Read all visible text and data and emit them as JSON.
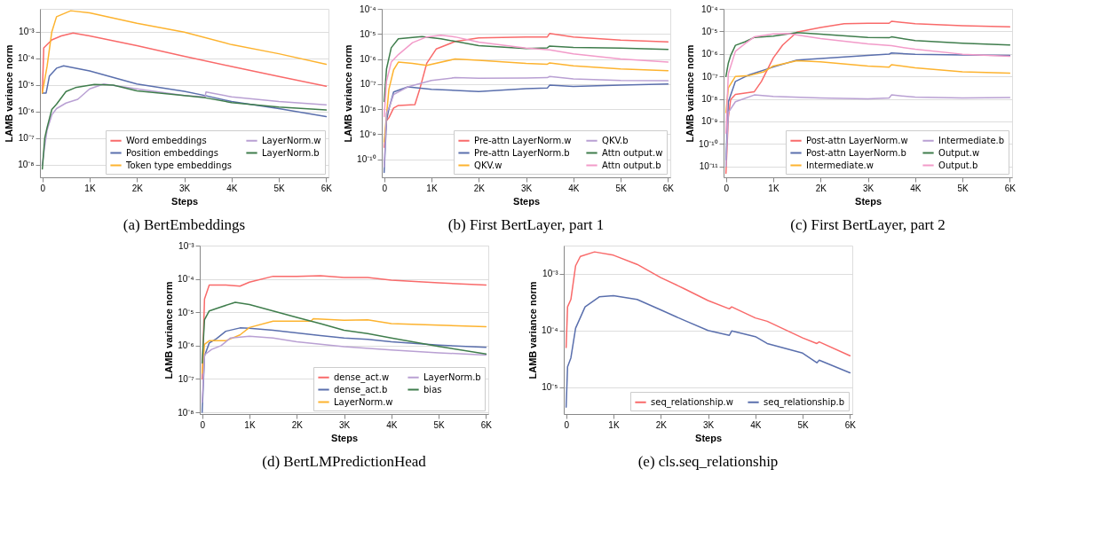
{
  "chart_data": [
    {
      "type": "line",
      "title": "(a) BertEmbeddings",
      "xlabel": "Steps",
      "ylabel": "LAMB variance norm",
      "log": "y",
      "grid": "y",
      "legend": "bottom right",
      "line_style": "solid",
      "xlim": [
        -50,
        6050
      ],
      "ylim": [
        3.4e-09,
        0.0073
      ],
      "xticks": [
        0,
        {
          "value": 1000,
          "label": "1K"
        },
        {
          "value": 2000,
          "label": "2K"
        },
        {
          "value": 3000,
          "label": "3K"
        },
        {
          "value": 4000,
          "label": "4K"
        },
        {
          "value": 5000,
          "label": "5K"
        },
        {
          "value": 6000,
          "label": "6K"
        }
      ],
      "yticks": [
        {
          "value": 1e-08,
          "label": "10⁻⁸"
        },
        {
          "value": 1e-07,
          "label": "10⁻⁷"
        },
        {
          "value": 1e-06,
          "label": "10⁻⁶"
        },
        {
          "value": 1e-05,
          "label": "10⁻⁵"
        },
        {
          "value": 0.0001,
          "label": "10⁻⁴"
        },
        {
          "value": 0.001,
          "label": "10⁻³"
        }
      ],
      "series": [
        {
          "name": "Word embeddings",
          "color": "#f96a6a",
          "x": [
            0,
            30,
            200,
            400,
            650,
            1000,
            2000,
            3000,
            4000,
            5000,
            6000
          ],
          "values": [
            5e-06,
            0.00025,
            0.0005,
            0.0007,
            0.0009,
            0.0007,
            0.0003,
            0.00012,
            5e-05,
            2.1e-05,
            9e-06
          ]
        },
        {
          "name": "Position embeddings",
          "color": "#5a6fad",
          "x": [
            0,
            80,
            150,
            300,
            450,
            1000,
            2000,
            3000,
            3450,
            4000,
            5000,
            6000
          ],
          "values": [
            5e-06,
            5e-06,
            2.2e-05,
            4.3e-05,
            5.3e-05,
            3.4e-05,
            1.1e-05,
            5.8e-06,
            4e-06,
            2.4e-06,
            1.3e-06,
            6.5e-07
          ]
        },
        {
          "name": "Token type embeddings",
          "color": "#fdb32f",
          "x": [
            0,
            100,
            200,
            300,
            600,
            1000,
            2000,
            3000,
            4000,
            5000,
            6000
          ],
          "values": [
            5e-06,
            5e-05,
            0.001,
            0.0037,
            0.0062,
            0.0052,
            0.0021,
            0.00098,
            0.00033,
            0.00015,
            6e-05
          ]
        },
        {
          "name": "LayerNorm.w",
          "color": "#b9a0d3",
          "x": [
            0,
            50,
            100,
            200,
            300,
            500,
            750,
            1000,
            1300,
            2000,
            3000,
            3440,
            3460,
            4000,
            5000,
            6000
          ],
          "values": [
            1e-08,
            5e-08,
            2e-07,
            7.5e-07,
            1.3e-06,
            2.1e-06,
            2.9e-06,
            7.2e-06,
            1.1e-05,
            7.2e-06,
            4e-06,
            3.6e-06,
            5.5e-06,
            3.6e-06,
            2.4e-06,
            1.8e-06
          ]
        },
        {
          "name": "LayerNorm.b",
          "color": "#3f7d4c",
          "x": [
            0,
            50,
            100,
            200,
            300,
            500,
            700,
            1100,
            1500,
            2000,
            3000,
            3450,
            4000,
            5000,
            6000
          ],
          "values": [
            7e-09,
            1e-07,
            2.5e-07,
            1.2e-06,
            1.9e-06,
            5.7e-06,
            8e-06,
            1.05e-05,
            1e-05,
            6e-06,
            4e-06,
            3.3e-06,
            2.2e-06,
            1.5e-06,
            1.15e-06
          ]
        }
      ]
    },
    {
      "type": "line",
      "title": "(b) First BertLayer, part 1",
      "xlabel": "Steps",
      "ylabel": "LAMB variance norm",
      "log": "y",
      "grid": "y",
      "legend": "bottom right",
      "line_style": "solid",
      "xlim": [
        -50,
        6050
      ],
      "ylim": [
        1.9e-11,
        0.0001
      ],
      "xticks": [
        0,
        {
          "value": 1000,
          "label": "1K"
        },
        {
          "value": 2000,
          "label": "2K"
        },
        {
          "value": 3000,
          "label": "3K"
        },
        {
          "value": 4000,
          "label": "4K"
        },
        {
          "value": 5000,
          "label": "5K"
        },
        {
          "value": 6000,
          "label": "6K"
        }
      ],
      "yticks": [
        {
          "value": 1e-10,
          "label": "10⁻¹⁰"
        },
        {
          "value": 1e-09,
          "label": "10⁻⁹"
        },
        {
          "value": 1e-08,
          "label": "10⁻⁸"
        },
        {
          "value": 1e-07,
          "label": "10⁻⁷"
        },
        {
          "value": 1e-06,
          "label": "10⁻⁶"
        },
        {
          "value": 1e-05,
          "label": "10⁻⁵"
        },
        {
          "value": 0.0001,
          "label": "10⁻⁴"
        }
      ],
      "series": [
        {
          "name": "Pre-attn LayerNorm.w",
          "color": "#f96a6a",
          "x": [
            0,
            50,
            100,
            200,
            300,
            650,
            750,
            900,
            1100,
            1500,
            2000,
            3000,
            3450,
            3500,
            4000,
            5000,
            6000
          ],
          "values": [
            3e-10,
            3.5e-09,
            4.5e-09,
            1.1e-08,
            1.4e-08,
            1.5e-08,
            6e-08,
            6.7e-07,
            2.5e-06,
            5e-06,
            7e-06,
            7.6e-06,
            7.6e-06,
            1.05e-05,
            7.6e-06,
            5.7e-06,
            4.8e-06
          ]
        },
        {
          "name": "Pre-attn LayerNorm.b",
          "color": "#5a6fad",
          "x": [
            0,
            50,
            100,
            200,
            500,
            1000,
            2000,
            3000,
            3450,
            3500,
            4000,
            5000,
            6000
          ],
          "values": [
            3e-11,
            3.5e-09,
            1e-08,
            4.8e-08,
            7.7e-08,
            6.2e-08,
            5e-08,
            6.5e-08,
            6.9e-08,
            9e-08,
            8e-08,
            9e-08,
            1e-07
          ]
        },
        {
          "name": "QKV.w",
          "color": "#fdb32f",
          "x": [
            0,
            100,
            200,
            300,
            600,
            900,
            1500,
            2000,
            3000,
            3450,
            3500,
            4000,
            5000,
            6000
          ],
          "values": [
            5e-10,
            6.1e-08,
            3.7e-07,
            7.5e-07,
            6.7e-07,
            5.6e-07,
            1e-06,
            8.9e-07,
            6.7e-07,
            6.2e-07,
            7e-07,
            5.3e-07,
            4e-07,
            3.4e-07
          ]
        },
        {
          "name": "QKV.b",
          "color": "#b9a0d3",
          "x": [
            0,
            50,
            100,
            200,
            500,
            1000,
            1500,
            2000,
            3000,
            3450,
            3500,
            4000,
            5000,
            6000
          ],
          "values": [
            5e-11,
            7e-09,
            1.1e-08,
            3.8e-08,
            7.7e-08,
            1.4e-07,
            1.8e-07,
            1.7e-07,
            1.75e-07,
            1.8e-07,
            2e-07,
            1.6e-07,
            1.4e-07,
            1.35e-07
          ]
        },
        {
          "name": "Attn output.w",
          "color": "#3f7d4c",
          "x": [
            0,
            50,
            150,
            300,
            500,
            800,
            1200,
            2000,
            3000,
            3450,
            3500,
            4000,
            5000,
            6000
          ],
          "values": [
            2e-08,
            4e-07,
            2.8e-06,
            6.4e-06,
            6.9e-06,
            7.8e-06,
            6.4e-06,
            3.4e-06,
            2.6e-06,
            2.8e-06,
            3.3e-06,
            2.9e-06,
            2.7e-06,
            2.4e-06
          ]
        },
        {
          "name": "Attn output.b",
          "color": "#f29bc9",
          "x": [
            0,
            50,
            150,
            300,
            600,
            900,
            1200,
            1500,
            2000,
            3000,
            3500,
            4000,
            5000,
            6000
          ],
          "values": [
            5e-09,
            1.3e-07,
            7.5e-07,
            1.5e-06,
            4.5e-06,
            7.6e-06,
            8.8e-06,
            7.6e-06,
            4.7e-06,
            2.7e-06,
            2.3e-06,
            1.6e-06,
            1e-06,
            7.5e-07
          ]
        }
      ]
    },
    {
      "type": "line",
      "title": "(c) First BertLayer, part 2",
      "xlabel": "Steps",
      "ylabel": "LAMB variance norm",
      "log": "y",
      "grid": "y",
      "legend": "bottom right",
      "line_style": "solid",
      "xlim": [
        -50,
        6050
      ],
      "ylim": [
        3.3e-12,
        0.0001
      ],
      "xticks": [
        0,
        {
          "value": 1000,
          "label": "1K"
        },
        {
          "value": 2000,
          "label": "2K"
        },
        {
          "value": 3000,
          "label": "3K"
        },
        {
          "value": 4000,
          "label": "4K"
        },
        {
          "value": 5000,
          "label": "5K"
        },
        {
          "value": 6000,
          "label": "6K"
        }
      ],
      "yticks": [
        {
          "value": 1e-11,
          "label": "10⁻¹¹"
        },
        {
          "value": 1e-10,
          "label": "10⁻¹⁰"
        },
        {
          "value": 1e-09,
          "label": "10⁻⁹"
        },
        {
          "value": 1e-08,
          "label": "10⁻⁸"
        },
        {
          "value": 1e-07,
          "label": "10⁻⁷"
        },
        {
          "value": 1e-06,
          "label": "10⁻⁶"
        },
        {
          "value": 1e-05,
          "label": "10⁻⁵"
        },
        {
          "value": 0.0001,
          "label": "10⁻⁴"
        }
      ],
      "series": [
        {
          "name": "Post-attn LayerNorm.w",
          "color": "#f96a6a",
          "x": [
            0,
            50,
            100,
            200,
            600,
            750,
            1000,
            1200,
            1500,
            2000,
            2500,
            3000,
            3450,
            3500,
            4000,
            5000,
            6000
          ],
          "values": [
            5e-12,
            1.5e-09,
            9.5e-09,
            1.6e-08,
            2.1e-08,
            6e-08,
            6.6e-07,
            2.5e-06,
            9.2e-06,
            1.5e-05,
            2.2e-05,
            2.3e-05,
            2.3e-05,
            2.8e-05,
            2.2e-05,
            1.8e-05,
            1.6e-05
          ]
        },
        {
          "name": "Post-attn LayerNorm.b",
          "color": "#5a6fad",
          "x": [
            0,
            50,
            200,
            500,
            1000,
            1500,
            2000,
            3000,
            3450,
            3500,
            4000,
            5000,
            6000
          ],
          "values": [
            2e-11,
            7.3e-09,
            6e-08,
            1.2e-07,
            2.6e-07,
            5.3e-07,
            6.2e-07,
            8.6e-07,
            9.8e-07,
            1.1e-06,
            9.5e-07,
            9e-07,
            8.6e-07
          ]
        },
        {
          "name": "Intermediate.w",
          "color": "#fdb32f",
          "x": [
            0,
            50,
            200,
            500,
            800,
            1000,
            1500,
            2000,
            3000,
            3450,
            3500,
            4000,
            5000,
            6000
          ],
          "values": [
            2.5e-09,
            3.1e-08,
            1e-07,
            1.1e-07,
            1.6e-07,
            2.9e-07,
            5e-07,
            4.4e-07,
            2.9e-07,
            2.6e-07,
            3.3e-07,
            2.4e-07,
            1.6e-07,
            1.4e-07
          ]
        },
        {
          "name": "Intermediate.b",
          "color": "#b9a0d3",
          "x": [
            0,
            50,
            200,
            600,
            1000,
            2000,
            3000,
            3450,
            3500,
            4000,
            5000,
            6000
          ],
          "values": [
            1e-11,
            2.5e-09,
            7.5e-09,
            1.5e-08,
            1.3e-08,
            1.1e-08,
            1e-08,
            1.1e-08,
            1.5e-08,
            1.2e-08,
            1.1e-08,
            1.15e-08
          ]
        },
        {
          "name": "Output.w",
          "color": "#3f7d4c",
          "x": [
            0,
            50,
            100,
            200,
            400,
            600,
            1000,
            1500,
            2000,
            3000,
            3450,
            3500,
            4000,
            5000,
            6000
          ],
          "values": [
            1e-07,
            3.9e-07,
            8.5e-07,
            2.4e-06,
            3.4e-06,
            5.4e-06,
            6.2e-06,
            8.8e-06,
            7.5e-06,
            5.4e-06,
            5.2e-06,
            5.7e-06,
            3.9e-06,
            3e-06,
            2.5e-06
          ]
        },
        {
          "name": "Output.b",
          "color": "#f29bc9",
          "x": [
            0,
            50,
            200,
            400,
            600,
            1000,
            1300,
            2000,
            3000,
            3500,
            4000,
            5000,
            6000
          ],
          "values": [
            3e-10,
            1.3e-07,
            1.3e-06,
            2.8e-06,
            5.7e-06,
            7.7e-06,
            8e-06,
            4.8e-06,
            2.8e-06,
            2.3e-06,
            1.6e-06,
            9.7e-07,
            7.9e-07
          ]
        }
      ]
    },
    {
      "type": "line",
      "title": "(d) BertLMPredictionHead",
      "xlabel": "Steps",
      "ylabel": "LAMB variance norm",
      "log": "y",
      "grid": "y",
      "legend": "bottom right",
      "line_style": "solid",
      "xlim": [
        -50,
        6050
      ],
      "ylim": [
        8.9e-09,
        0.001
      ],
      "xticks": [
        0,
        {
          "value": 1000,
          "label": "1K"
        },
        {
          "value": 2000,
          "label": "2K"
        },
        {
          "value": 3000,
          "label": "3K"
        },
        {
          "value": 4000,
          "label": "4K"
        },
        {
          "value": 5000,
          "label": "5K"
        },
        {
          "value": 6000,
          "label": "6K"
        }
      ],
      "yticks": [
        {
          "value": 1e-08,
          "label": "10⁻⁸"
        },
        {
          "value": 1e-07,
          "label": "10⁻⁷"
        },
        {
          "value": 1e-06,
          "label": "10⁻⁶"
        },
        {
          "value": 1e-05,
          "label": "10⁻⁵"
        },
        {
          "value": 0.0001,
          "label": "10⁻⁴"
        },
        {
          "value": 0.001,
          "label": "10⁻³"
        }
      ],
      "series": [
        {
          "name": "dense_act.w",
          "color": "#f96a6a",
          "x": [
            0,
            50,
            150,
            500,
            800,
            1000,
            1500,
            2000,
            2500,
            3000,
            3500,
            4000,
            5000,
            6000
          ],
          "values": [
            1e-07,
            2.5e-05,
            6.6e-05,
            6.6e-05,
            6.1e-05,
            8e-05,
            0.00012,
            0.00012,
            0.000125,
            0.00011,
            0.00011,
            9.2e-05,
            7.6e-05,
            6.6e-05
          ]
        },
        {
          "name": "dense_act.b",
          "color": "#5a6fad",
          "x": [
            0,
            50,
            150,
            300,
            500,
            800,
            1000,
            1500,
            2000,
            2500,
            3000,
            3500,
            4000,
            5000,
            6000
          ],
          "values": [
            1e-08,
            4.9e-07,
            1.2e-06,
            1.6e-06,
            2.7e-06,
            3.4e-06,
            3.3e-06,
            2.9e-06,
            2.4e-06,
            2e-06,
            1.7e-06,
            1.55e-06,
            1.3e-06,
            1.04e-06,
            8.9e-07
          ]
        },
        {
          "name": "LayerNorm.w",
          "color": "#fdb32f",
          "x": [
            0,
            50,
            150,
            500,
            800,
            1000,
            1500,
            2300,
            2350,
            3000,
            3500,
            4000,
            5000,
            6000
          ],
          "values": [
            1.5e-07,
            1.1e-06,
            1.4e-06,
            1.4e-06,
            2.1e-06,
            3.5e-06,
            5.4e-06,
            5.4e-06,
            6.4e-06,
            5.8e-06,
            5.9e-06,
            4.6e-06,
            4.1e-06,
            3.7e-06
          ]
        },
        {
          "name": "LayerNorm.b",
          "color": "#b9a0d3",
          "x": [
            0,
            50,
            200,
            400,
            600,
            1000,
            1500,
            2000,
            3000,
            4000,
            5000,
            6000
          ],
          "values": [
            2e-08,
            5.3e-07,
            7.7e-07,
            1e-06,
            1.7e-06,
            1.9e-06,
            1.7e-06,
            1.3e-06,
            9.3e-07,
            7.4e-07,
            6.1e-07,
            5.2e-07
          ]
        },
        {
          "name": "bias",
          "color": "#3f7d4c",
          "x": [
            0,
            50,
            150,
            300,
            700,
            1000,
            1500,
            2000,
            2500,
            3000,
            3500,
            4000,
            5000,
            6000
          ],
          "values": [
            3e-07,
            6e-06,
            1.1e-05,
            1.3e-05,
            2e-05,
            1.7e-05,
            1.1e-05,
            7e-06,
            4.6e-06,
            2.9e-06,
            2.3e-06,
            1.7e-06,
            9.5e-07,
            5.6e-07
          ]
        }
      ]
    },
    {
      "type": "line",
      "title": "(e) cls.seq_relationship",
      "xlabel": "Steps",
      "ylabel": "LAMB variance norm",
      "log": "y",
      "grid": "y",
      "legend": "bottom right",
      "line_style": "solid",
      "xlim": [
        -50,
        6050
      ],
      "ylim": [
        3.4e-06,
        0.0031
      ],
      "xticks": [
        0,
        {
          "value": 1000,
          "label": "1K"
        },
        {
          "value": 2000,
          "label": "2K"
        },
        {
          "value": 3000,
          "label": "3K"
        },
        {
          "value": 4000,
          "label": "4K"
        },
        {
          "value": 5000,
          "label": "5K"
        },
        {
          "value": 6000,
          "label": "6K"
        }
      ],
      "yticks": [
        {
          "value": 1e-05,
          "label": "10⁻⁵"
        },
        {
          "value": 0.0001,
          "label": "10⁻⁴"
        },
        {
          "value": 0.001,
          "label": "10⁻³"
        }
      ],
      "series": [
        {
          "name": "seq_relationship.w",
          "color": "#f96a6a",
          "x": [
            0,
            30,
            100,
            200,
            300,
            600,
            1000,
            1500,
            2000,
            2500,
            3000,
            3450,
            3500,
            4000,
            4250,
            5000,
            5300,
            5350,
            6000
          ],
          "values": [
            5e-05,
            0.00026,
            0.00035,
            0.00137,
            0.002,
            0.0024,
            0.0021,
            0.00145,
            0.00085,
            0.00054,
            0.000335,
            0.00024,
            0.00026,
            0.000166,
            0.000145,
            7.4e-05,
            5.9e-05,
            6.3e-05,
            3.6e-05
          ]
        },
        {
          "name": "seq_relationship.b",
          "color": "#5a6fad",
          "x": [
            0,
            30,
            100,
            200,
            400,
            700,
            1000,
            1500,
            2000,
            2500,
            3000,
            3450,
            3500,
            4000,
            4250,
            5000,
            5300,
            5350,
            6000
          ],
          "values": [
            4.5e-06,
            2.3e-05,
            3.3e-05,
            0.00011,
            0.00026,
            0.00039,
            0.00041,
            0.00035,
            0.00023,
            0.00015,
            0.0001,
            8.2e-05,
            9.8e-05,
            7.8e-05,
            5.9e-05,
            4e-05,
            2.7e-05,
            3e-05,
            1.8e-05
          ]
        }
      ]
    }
  ]
}
